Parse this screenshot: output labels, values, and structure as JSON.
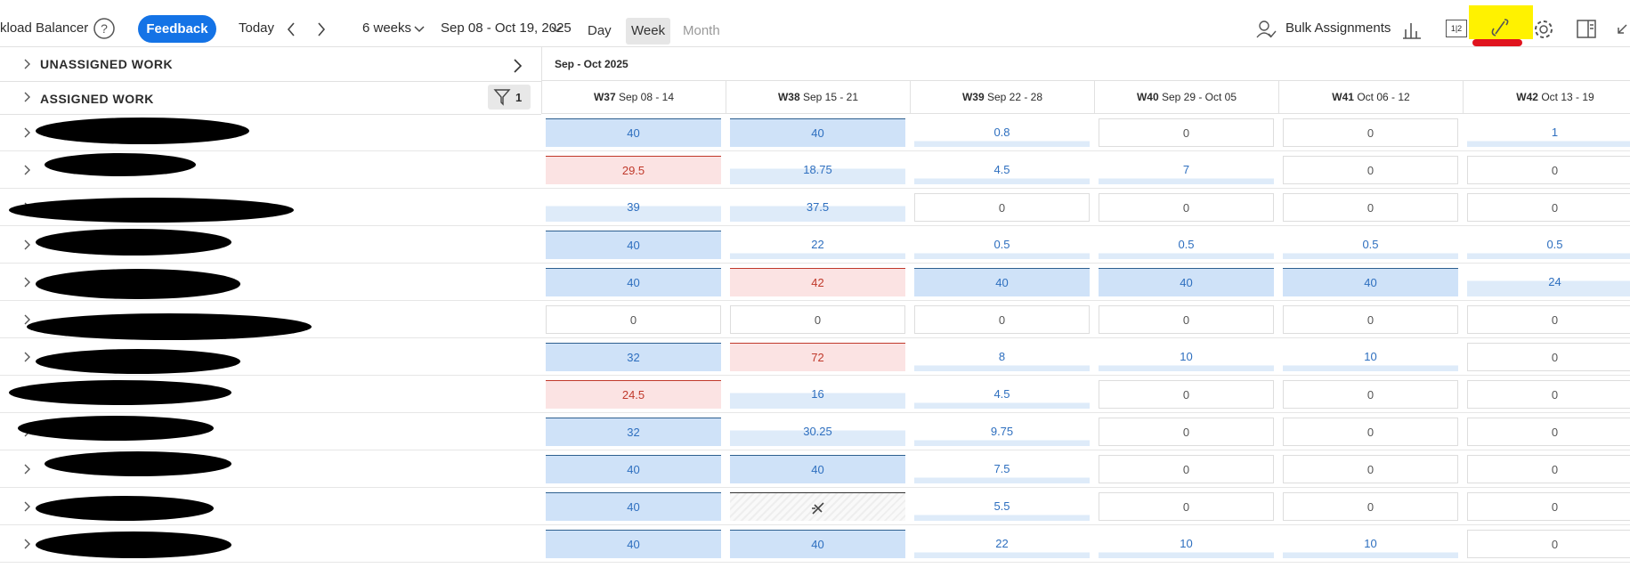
{
  "toolbar": {
    "app_title": "kload Balancer",
    "feedback": "Feedback",
    "today": "Today",
    "range_select": "6 weeks",
    "date_range": "Sep 08 - Oct 19, 2025",
    "views": [
      "Day",
      "Week",
      "Month"
    ],
    "active_view": "Week",
    "bulk": "Bulk Assignments",
    "layout_icon": "1|2"
  },
  "sections": {
    "unassigned": "UNASSIGNED WORK",
    "assigned": "ASSIGNED WORK",
    "filter_count": "1"
  },
  "period": "Sep - Oct 2025",
  "weeks": [
    {
      "code": "W37",
      "dates": "Sep 08 - 14"
    },
    {
      "code": "W38",
      "dates": "Sep 15 - 21"
    },
    {
      "code": "W39",
      "dates": "Sep 22 - 28"
    },
    {
      "code": "W40",
      "dates": "Sep 29 - Oct 05"
    },
    {
      "code": "W41",
      "dates": "Oct 06 - 12"
    },
    {
      "code": "W42",
      "dates": "Oct 13 - 19"
    }
  ],
  "rows": [
    [
      "40",
      "40",
      "0.8",
      "0",
      "0",
      "1"
    ],
    [
      "29.5",
      "18.75",
      "4.5",
      "7",
      "0",
      "0"
    ],
    [
      "39",
      "37.5",
      "0",
      "0",
      "0",
      "0"
    ],
    [
      "40",
      "22",
      "0.5",
      "0.5",
      "0.5",
      "0.5"
    ],
    [
      "40",
      "42",
      "40",
      "40",
      "40",
      "24"
    ],
    [
      "0",
      "0",
      "0",
      "0",
      "0",
      "0"
    ],
    [
      "32",
      "72",
      "8",
      "10",
      "10",
      "0"
    ],
    [
      "24.5",
      "16",
      "4.5",
      "0",
      "0",
      "0"
    ],
    [
      "32",
      "30.25",
      "9.75",
      "0",
      "0",
      "0"
    ],
    [
      "40",
      "40",
      "7.5",
      "0",
      "0",
      "0"
    ],
    [
      "40",
      null,
      "5.5",
      "0",
      "0",
      "0"
    ],
    [
      "40",
      "40",
      "22",
      "10",
      "10",
      "0"
    ]
  ],
  "states": [
    [
      "full",
      "full",
      "low",
      "empty",
      "empty",
      "low"
    ],
    [
      "over",
      "part",
      "low",
      "low",
      "empty",
      "empty"
    ],
    [
      "part",
      "part",
      "empty",
      "empty",
      "empty",
      "empty"
    ],
    [
      "full",
      "low",
      "low",
      "low",
      "low",
      "low"
    ],
    [
      "full",
      "over",
      "full",
      "full",
      "full",
      "part"
    ],
    [
      "empty",
      "empty",
      "empty",
      "empty",
      "empty",
      "empty"
    ],
    [
      "full",
      "over",
      "low",
      "low",
      "low",
      "empty"
    ],
    [
      "over",
      "part",
      "low",
      "empty",
      "empty",
      "empty"
    ],
    [
      "full",
      "part",
      "low",
      "empty",
      "empty",
      "empty"
    ],
    [
      "full",
      "full",
      "low",
      "empty",
      "empty",
      "empty"
    ],
    [
      "full",
      "off",
      "low",
      "empty",
      "empty",
      "empty"
    ],
    [
      "full",
      "full",
      "low",
      "low",
      "low",
      "empty"
    ]
  ]
}
